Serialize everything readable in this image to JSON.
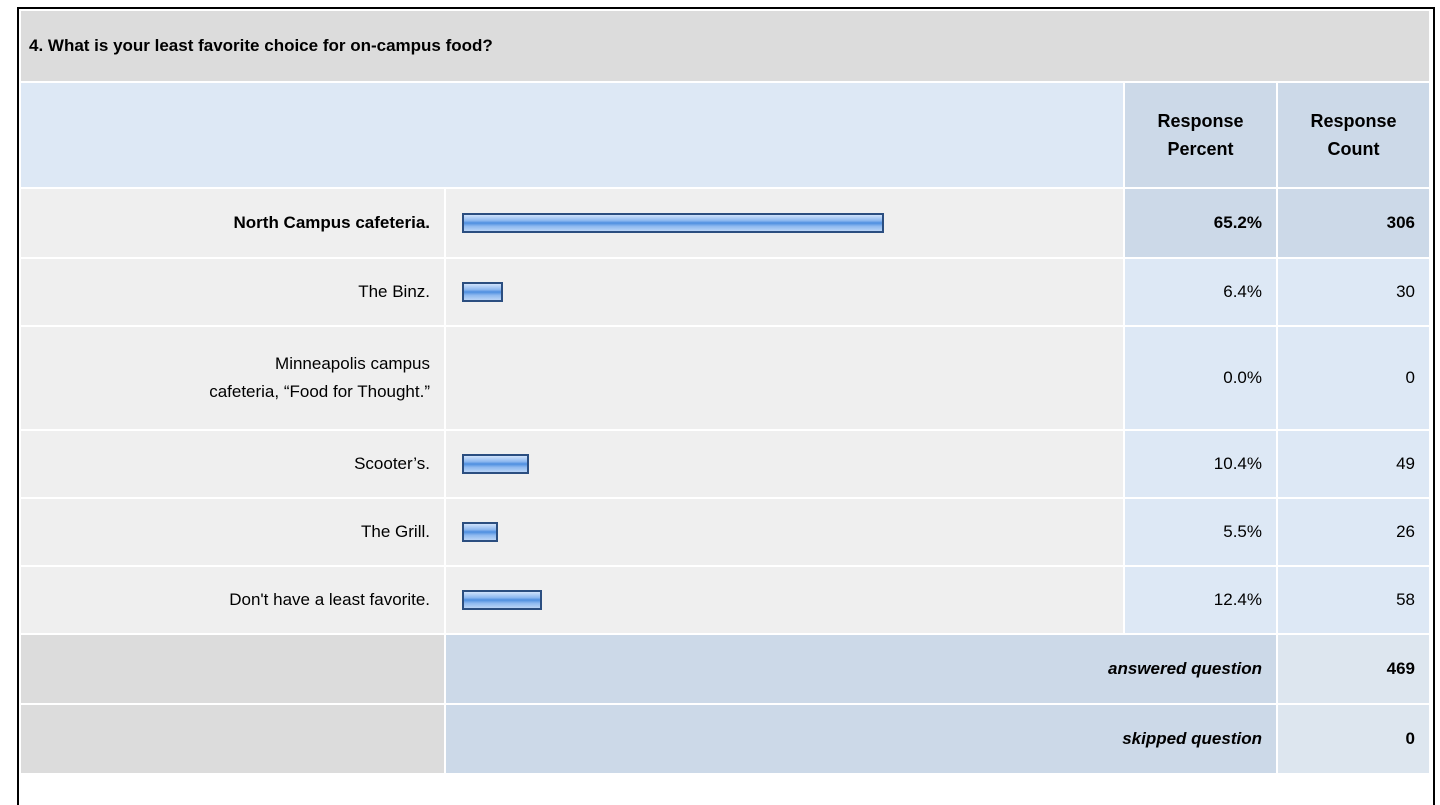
{
  "question": "4. What is your least favorite choice for on-campus food?",
  "header": {
    "percent": "Response Percent",
    "count": "Response Count"
  },
  "rows": [
    {
      "label": "North Campus cafeteria.",
      "percent": "65.2%",
      "count": "306"
    },
    {
      "label": "The Binz.",
      "percent": "6.4%",
      "count": "30"
    },
    {
      "label": "Minneapolis campus cafeteria, “Food for Thought.”",
      "percent": "0.0%",
      "count": "0"
    },
    {
      "label": "Scooter’s.",
      "percent": "10.4%",
      "count": "49"
    },
    {
      "label": "The Grill.",
      "percent": "5.5%",
      "count": "26"
    },
    {
      "label": "Don't have a least favorite.",
      "percent": "12.4%",
      "count": "58"
    }
  ],
  "answered": {
    "label": "answered question",
    "count": "469"
  },
  "skipped": {
    "label": "skipped question",
    "count": "0"
  }
}
